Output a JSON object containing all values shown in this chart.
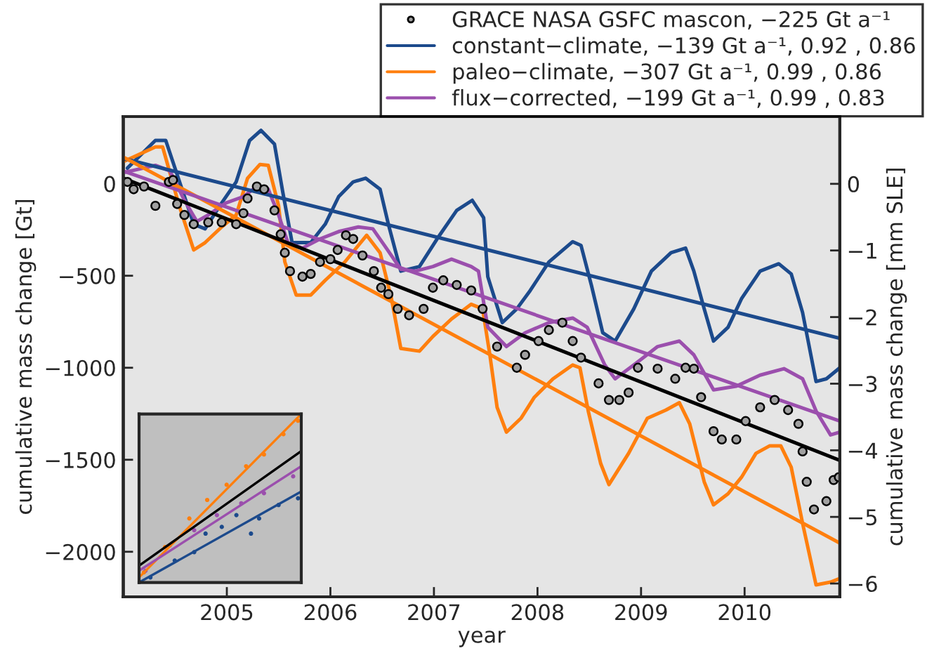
{
  "chart_data": {
    "type": "line",
    "xlabel": "year",
    "ylabel": "cumulative mass change [Gt]",
    "y2label": "cumulative mass change [mm SLE]",
    "xlim": [
      2004.0,
      2010.92
    ],
    "xticks": [
      2005,
      2006,
      2007,
      2008,
      2009,
      2010
    ],
    "ylim": [
      -2245,
      365
    ],
    "yticks": [
      0,
      -500,
      -1000,
      -1500,
      -2000
    ],
    "y2lim": [
      -6.2,
      1.01
    ],
    "y2ticks": [
      0,
      -1,
      -2,
      -3,
      -4,
      -5,
      -6
    ],
    "legend": "top right",
    "series": [
      {
        "name": "GRACE NASA GSFC mascon, −225 Gt a⁻¹",
        "type": "scatter",
        "marker": "circle",
        "color": "#a0a0a0",
        "x": [
          2004.04,
          2004.1,
          2004.2,
          2004.31,
          2004.44,
          2004.48,
          2004.52,
          2004.59,
          2004.68,
          2004.82,
          2004.95,
          2005.09,
          2005.16,
          2005.2,
          2005.29,
          2005.36,
          2005.46,
          2005.52,
          2005.56,
          2005.61,
          2005.73,
          2005.81,
          2005.9,
          2006.0,
          2006.07,
          2006.15,
          2006.22,
          2006.31,
          2006.42,
          2006.49,
          2006.56,
          2006.65,
          2006.76,
          2006.9,
          2006.99,
          2007.09,
          2007.22,
          2007.36,
          2007.47,
          2007.61,
          2007.8,
          2007.88,
          2008.01,
          2008.11,
          2008.24,
          2008.34,
          2008.42,
          2008.59,
          2008.69,
          2008.79,
          2008.88,
          2008.97,
          2009.16,
          2009.33,
          2009.43,
          2009.51,
          2009.58,
          2009.7,
          2009.78,
          2009.92,
          2010.01,
          2010.15,
          2010.29,
          2010.42,
          2010.52,
          2010.56,
          2010.6,
          2010.67,
          2010.79,
          2010.86,
          2010.91
        ],
        "values": [
          10,
          -30,
          -15,
          -120,
          10,
          20,
          -110,
          -170,
          -220,
          -210,
          -210,
          -220,
          -160,
          -80,
          -15,
          -30,
          -145,
          -275,
          -375,
          -475,
          -505,
          -490,
          -425,
          -410,
          -360,
          -280,
          -300,
          -390,
          -475,
          -565,
          -600,
          -680,
          -715,
          -680,
          -565,
          -525,
          -550,
          -580,
          -680,
          -885,
          -1000,
          -930,
          -855,
          -795,
          -755,
          -855,
          -945,
          -1085,
          -1175,
          -1175,
          -1135,
          -1000,
          -1005,
          -1060,
          -1000,
          -1005,
          -1160,
          -1345,
          -1390,
          -1390,
          -1290,
          -1215,
          -1175,
          -1230,
          -1305,
          -1455,
          -1620,
          -1770,
          -1725,
          -1610,
          -1595
        ]
      },
      {
        "name": "constant−climate, −139 Gt a⁻¹, 0.92 , 0.86",
        "color": "#1c4a8c",
        "x": [
          2004.04,
          2004.31,
          2004.41,
          2004.68,
          2004.79,
          2004.95,
          2005.09,
          2005.22,
          2005.33,
          2005.46,
          2005.54,
          2005.63,
          2005.81,
          2005.95,
          2006.08,
          2006.22,
          2006.34,
          2006.48,
          2006.56,
          2006.68,
          2006.86,
          2007.03,
          2007.22,
          2007.37,
          2007.48,
          2007.52,
          2007.66,
          2007.8,
          2007.93,
          2008.11,
          2008.34,
          2008.42,
          2008.52,
          2008.63,
          2008.75,
          2008.93,
          2009.1,
          2009.29,
          2009.43,
          2009.51,
          2009.61,
          2009.7,
          2009.84,
          2009.97,
          2010.15,
          2010.33,
          2010.45,
          2010.56,
          2010.69,
          2010.79,
          2010.92
        ],
        "values": [
          85,
          235,
          235,
          -220,
          -245,
          -105,
          10,
          235,
          290,
          215,
          -45,
          -320,
          -320,
          -220,
          -70,
          10,
          30,
          -30,
          -220,
          -475,
          -450,
          -300,
          -145,
          -90,
          -185,
          -505,
          -755,
          -680,
          -580,
          -425,
          -315,
          -335,
          -550,
          -810,
          -855,
          -680,
          -475,
          -375,
          -350,
          -475,
          -680,
          -855,
          -780,
          -625,
          -475,
          -435,
          -490,
          -700,
          -1075,
          -1060,
          -1000
        ]
      },
      {
        "name": "paleo−climate, −307 Gt a⁻¹, 0.99 , 0.86",
        "color": "#ff7f0e",
        "x": [
          2004.0,
          2004.31,
          2004.38,
          2004.54,
          2004.68,
          2004.79,
          2004.95,
          2005.09,
          2005.2,
          2005.32,
          2005.4,
          2005.5,
          2005.56,
          2005.67,
          2005.81,
          2005.95,
          2006.14,
          2006.27,
          2006.35,
          2006.48,
          2006.59,
          2006.68,
          2006.86,
          2006.99,
          2007.17,
          2007.36,
          2007.47,
          2007.54,
          2007.61,
          2007.7,
          2007.84,
          2007.97,
          2008.15,
          2008.34,
          2008.41,
          2008.49,
          2008.61,
          2008.69,
          2008.88,
          2009.06,
          2009.24,
          2009.37,
          2009.47,
          2009.61,
          2009.7,
          2009.84,
          2009.97,
          2010.11,
          2010.24,
          2010.35,
          2010.45,
          2010.56,
          2010.69,
          2010.83,
          2010.92
        ],
        "values": [
          120,
          200,
          200,
          -120,
          -360,
          -320,
          -235,
          -170,
          30,
          105,
          100,
          -120,
          -425,
          -605,
          -605,
          -525,
          -425,
          -335,
          -280,
          -375,
          -625,
          -895,
          -910,
          -830,
          -735,
          -655,
          -680,
          -930,
          -1215,
          -1350,
          -1275,
          -1160,
          -1060,
          -985,
          -1000,
          -1235,
          -1520,
          -1635,
          -1465,
          -1275,
          -1230,
          -1190,
          -1305,
          -1620,
          -1745,
          -1685,
          -1595,
          -1465,
          -1425,
          -1425,
          -1540,
          -1845,
          -2180,
          -2165,
          -2145
        ]
      },
      {
        "name": "flux−corrected, −199 Gt a⁻¹, 0.99 , 0.83",
        "color": "#9b4fad",
        "x": [
          2004.0,
          2004.31,
          2004.45,
          2004.59,
          2004.71,
          2004.82,
          2004.99,
          2005.16,
          2005.29,
          2005.4,
          2005.5,
          2005.59,
          2005.73,
          2005.9,
          2006.08,
          2006.27,
          2006.41,
          2006.54,
          2006.68,
          2006.82,
          2006.99,
          2007.17,
          2007.36,
          2007.43,
          2007.52,
          2007.7,
          2007.88,
          2008.11,
          2008.34,
          2008.48,
          2008.65,
          2008.75,
          2008.93,
          2009.16,
          2009.37,
          2009.51,
          2009.7,
          2009.92,
          2010.15,
          2010.38,
          2010.56,
          2010.69,
          2010.83,
          2010.92
        ],
        "values": [
          60,
          100,
          70,
          -90,
          -205,
          -170,
          -105,
          -70,
          -15,
          -30,
          -170,
          -320,
          -350,
          -300,
          -260,
          -235,
          -245,
          -350,
          -465,
          -475,
          -450,
          -410,
          -450,
          -475,
          -780,
          -885,
          -810,
          -755,
          -730,
          -780,
          -985,
          -1060,
          -985,
          -885,
          -855,
          -930,
          -1120,
          -1100,
          -1040,
          -1005,
          -1060,
          -1235,
          -1365,
          -1350
        ]
      },
      {
        "color": "#1c4a8c",
        "x": [
          2004.0,
          2010.92
        ],
        "values": [
          137,
          -840
        ]
      },
      {
        "color": "#ff7f0e",
        "x": [
          2004.0,
          2010.92
        ],
        "values": [
          145,
          -1953
        ]
      },
      {
        "color": "#9b4fad",
        "x": [
          2004.0,
          2010.92
        ],
        "values": [
          69,
          -1290
        ]
      },
      {
        "color": "#000000",
        "x": [
          2004.0,
          2010.92
        ],
        "values": [
          30,
          -1503
        ]
      }
    ]
  }
}
